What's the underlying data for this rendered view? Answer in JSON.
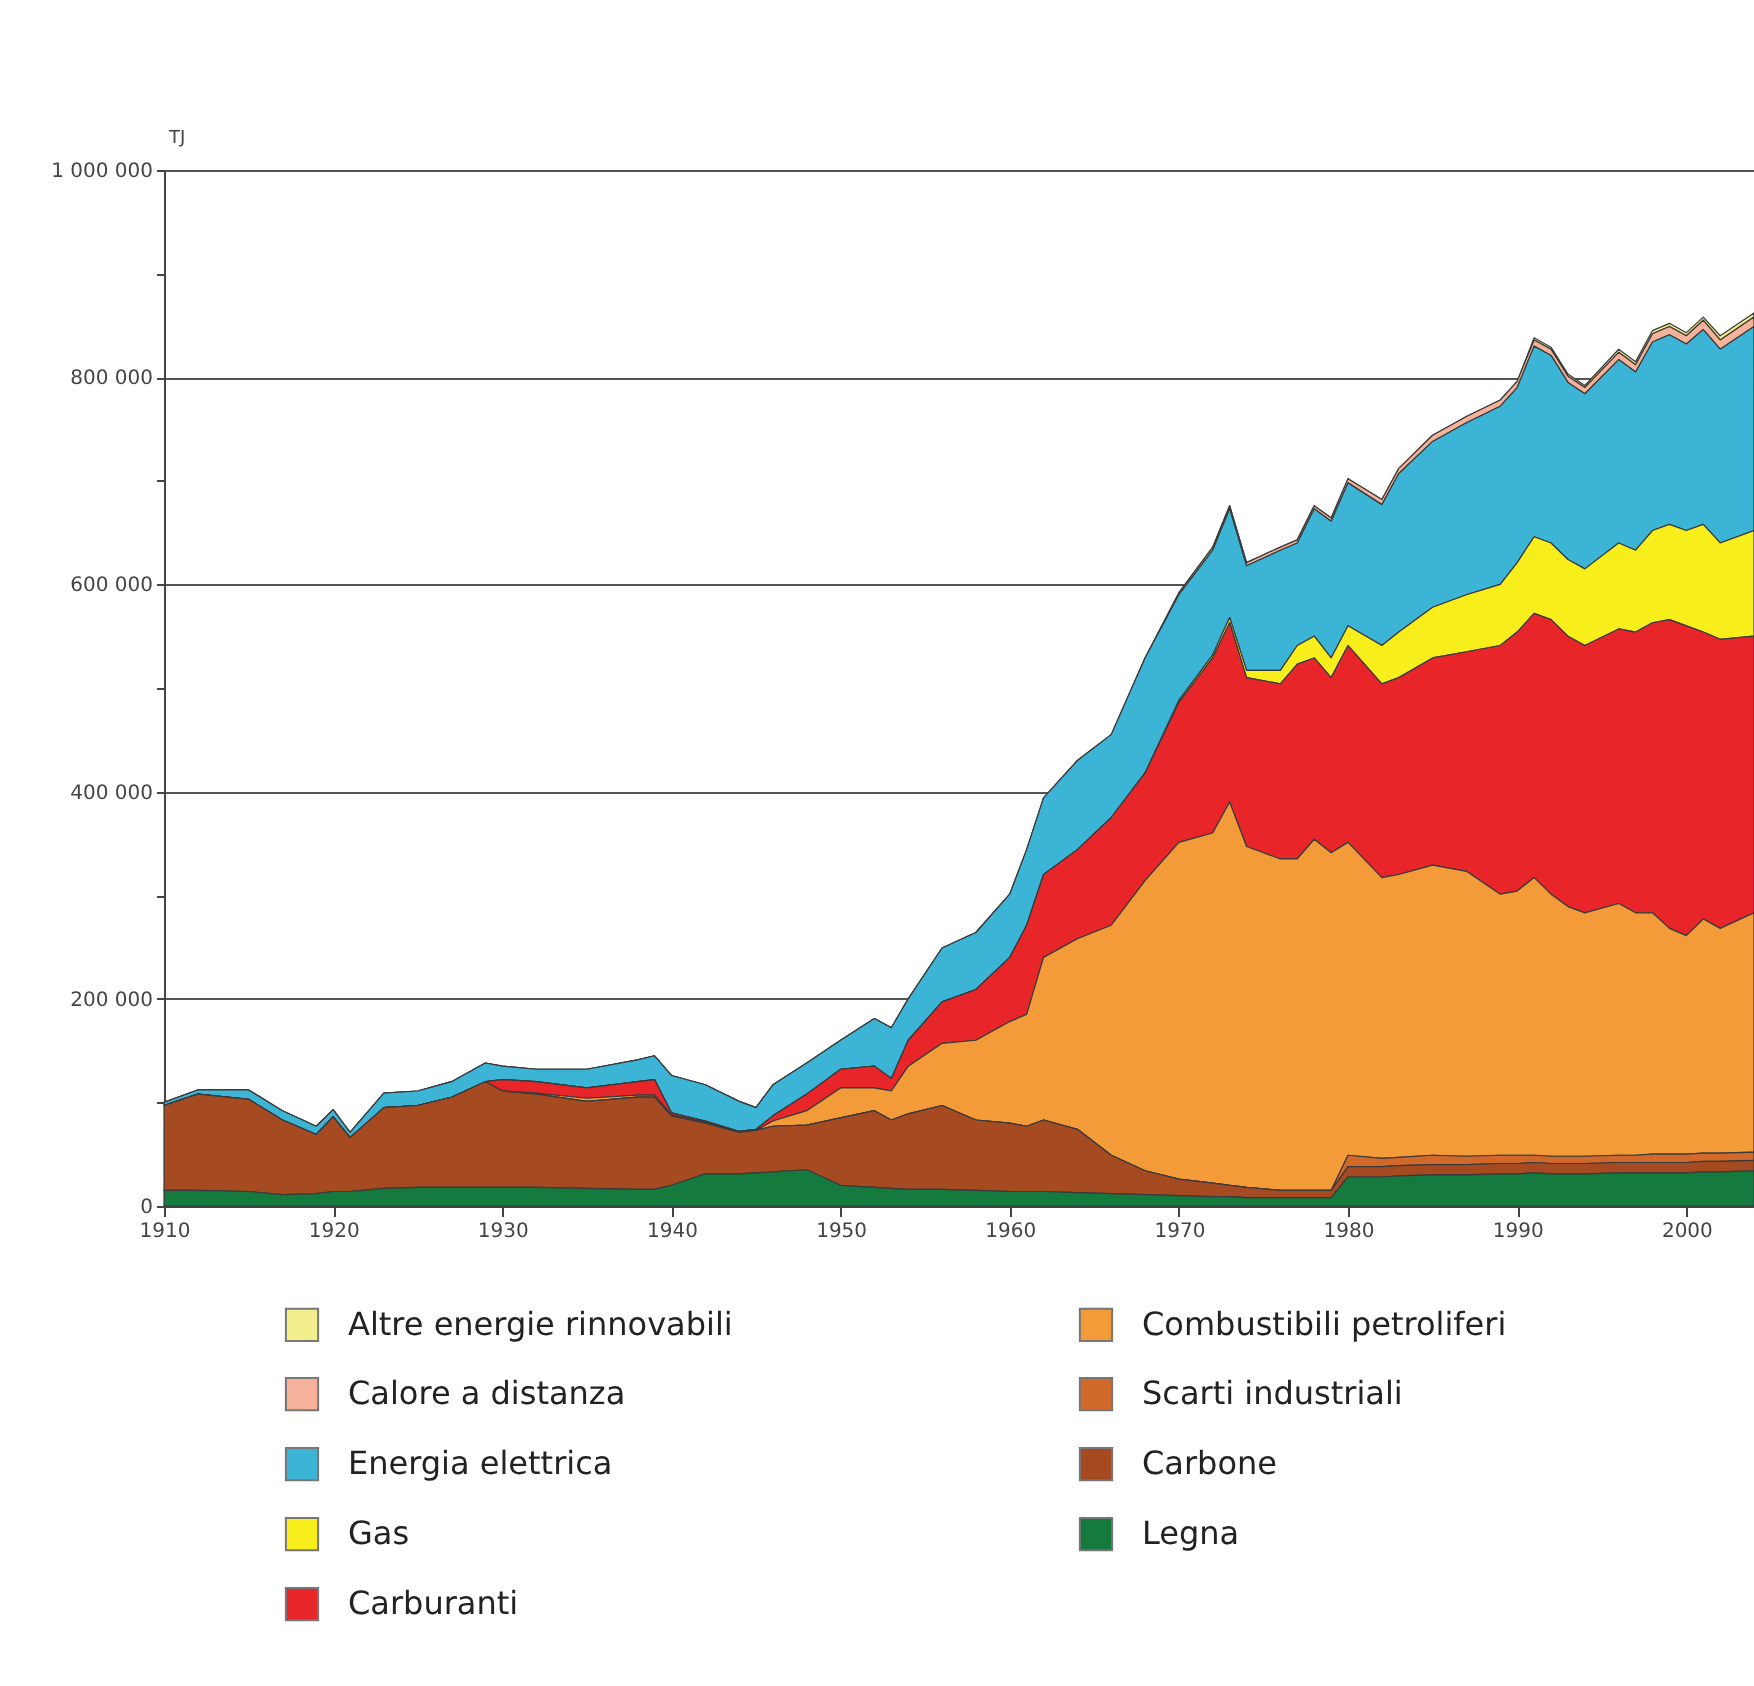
{
  "chart_data": {
    "type": "area",
    "stacked": true,
    "ylabel": "TJ",
    "legend": "bottom",
    "grid": "y",
    "x": [
      1910,
      1912,
      1915,
      1917,
      1919,
      1920,
      1921,
      1923,
      1925,
      1927,
      1929,
      1930,
      1932,
      1935,
      1938,
      1939,
      1940,
      1942,
      1944,
      1945,
      1946,
      1948,
      1950,
      1952,
      1953,
      1954,
      1956,
      1958,
      1960,
      1961,
      1962,
      1964,
      1966,
      1968,
      1970,
      1972,
      1973,
      1974,
      1976,
      1977,
      1978,
      1979,
      1980,
      1982,
      1983,
      1985,
      1987,
      1989,
      1990,
      1991,
      1992,
      1993,
      1994,
      1996,
      1997,
      1998,
      1999,
      2000,
      2001,
      2002,
      2004
    ],
    "xlim": [
      1910,
      2004
    ],
    "xticks": [
      1910,
      1920,
      1930,
      1940,
      1950,
      1960,
      1970,
      1980,
      1990,
      2000
    ],
    "ylim": [
      0,
      1000000
    ],
    "yticks": [
      0,
      {
        "value": 100000,
        "label": null
      },
      {
        "value": 200000,
        "label": "200 000"
      },
      {
        "value": 300000,
        "label": null
      },
      {
        "value": 400000,
        "label": "400 000"
      },
      {
        "value": 500000,
        "label": null
      },
      {
        "value": 600000,
        "label": "600 000"
      },
      {
        "value": 700000,
        "label": null
      },
      {
        "value": 800000,
        "label": "800 000"
      },
      {
        "value": 900000,
        "label": null
      },
      {
        "value": 1000000,
        "label": "1 000 000"
      }
    ],
    "series": [
      {
        "name": "Altre energie rinnovabili",
        "color": "#f3ee8c",
        "values": [
          0,
          0,
          0,
          0,
          0,
          0,
          0,
          0,
          0,
          0,
          0,
          0,
          0,
          0,
          0,
          0,
          0,
          0,
          0,
          0,
          0,
          0,
          0,
          0,
          0,
          0,
          0,
          0,
          0,
          0,
          0,
          0,
          0,
          0,
          0,
          0,
          0,
          0,
          0,
          0,
          0,
          0,
          0,
          0,
          0,
          0,
          0,
          0,
          0,
          2000,
          2000,
          2000,
          2000,
          3000,
          3000,
          3000,
          3000,
          3000,
          3000,
          4000,
          4000
        ]
      },
      {
        "name": "Calore a distanza",
        "color": "#f5b19a",
        "values": [
          0,
          0,
          0,
          0,
          0,
          0,
          0,
          0,
          0,
          0,
          0,
          0,
          0,
          0,
          0,
          0,
          0,
          0,
          0,
          0,
          0,
          0,
          0,
          0,
          0,
          0,
          0,
          0,
          0,
          0,
          0,
          0,
          0,
          0,
          2000,
          3000,
          3000,
          3000,
          3000,
          3000,
          3000,
          3000,
          4000,
          5000,
          5000,
          6000,
          6000,
          6000,
          6000,
          6000,
          6000,
          6000,
          6000,
          7000,
          7000,
          8000,
          8000,
          8000,
          9000,
          9000,
          9000
        ]
      },
      {
        "name": "Energia elettrica",
        "color": "#3cb4d6",
        "values": [
          3000,
          4000,
          9000,
          9000,
          8000,
          7000,
          5000,
          14000,
          14000,
          15000,
          18000,
          13000,
          12000,
          18000,
          21000,
          23000,
          36000,
          35000,
          29000,
          21000,
          30000,
          30000,
          28000,
          46000,
          49000,
          40000,
          52000,
          55000,
          61000,
          73000,
          74000,
          86000,
          80000,
          111000,
          102000,
          101000,
          105000,
          101000,
          116000,
          99000,
          123000,
          132000,
          138000,
          136000,
          153000,
          160000,
          166000,
          172000,
          169000,
          184000,
          181000,
          171000,
          169000,
          177000,
          172000,
          182000,
          183000,
          180000,
          188000,
          187000,
          197000
        ]
      },
      {
        "name": "Gas",
        "color": "#f7ee1b",
        "values": [
          0,
          0,
          0,
          0,
          0,
          0,
          0,
          0,
          0,
          0,
          0,
          0,
          0,
          0,
          0,
          0,
          0,
          0,
          0,
          0,
          0,
          0,
          0,
          0,
          0,
          0,
          0,
          0,
          0,
          0,
          0,
          0,
          0,
          0,
          2000,
          3000,
          5000,
          7000,
          13000,
          18000,
          21000,
          19000,
          19000,
          37000,
          44000,
          49000,
          55000,
          59000,
          67000,
          74000,
          74000,
          74000,
          74000,
          83000,
          79000,
          89000,
          92000,
          92000,
          104000,
          93000,
          102000
        ]
      },
      {
        "name": "Carburanti",
        "color": "#e8262a",
        "values": [
          0,
          0,
          0,
          0,
          0,
          0,
          0,
          0,
          0,
          0,
          0,
          11000,
          11000,
          10000,
          13000,
          15000,
          2000,
          1000,
          1000,
          1000,
          5000,
          16000,
          18000,
          21000,
          12000,
          25000,
          40000,
          49000,
          62000,
          86000,
          80000,
          86000,
          104000,
          104000,
          135000,
          169000,
          173000,
          163000,
          169000,
          188000,
          175000,
          169000,
          190000,
          187000,
          190000,
          200000,
          212000,
          240000,
          250000,
          255000,
          265000,
          261000,
          258000,
          265000,
          271000,
          280000,
          298000,
          299000,
          277000,
          279000,
          267000
        ]
      },
      {
        "name": "Combustibili petroliferi",
        "color": "#f29b38",
        "values": [
          0,
          0,
          0,
          0,
          0,
          0,
          0,
          0,
          0,
          0,
          0,
          0,
          1000,
          3000,
          2000,
          2000,
          1000,
          1000,
          0,
          0,
          5000,
          14000,
          29000,
          22000,
          28000,
          46000,
          60000,
          77000,
          98000,
          108000,
          157000,
          184000,
          222000,
          280000,
          325000,
          338000,
          370000,
          329000,
          320000,
          320000,
          339000,
          326000,
          302000,
          271000,
          273000,
          280000,
          275000,
          252000,
          255000,
          268000,
          253000,
          241000,
          235000,
          243000,
          234000,
          233000,
          218000,
          211000,
          226000,
          217000,
          231000
        ]
      },
      {
        "name": "Scarti industriali",
        "color": "#d0692a",
        "values": [
          0,
          0,
          0,
          0,
          0,
          0,
          0,
          0,
          0,
          0,
          0,
          0,
          0,
          0,
          0,
          0,
          0,
          0,
          0,
          0,
          0,
          0,
          0,
          0,
          0,
          0,
          0,
          0,
          0,
          0,
          0,
          0,
          0,
          0,
          0,
          0,
          0,
          0,
          0,
          0,
          0,
          0,
          11000,
          8000,
          8000,
          9000,
          8000,
          8000,
          8000,
          7000,
          7000,
          7000,
          7000,
          7000,
          7000,
          8000,
          8000,
          8000,
          8000,
          8000,
          8000
        ]
      },
      {
        "name": "Carbone",
        "color": "#a64a22",
        "values": [
          82000,
          93000,
          89000,
          72000,
          57000,
          72000,
          52000,
          78000,
          79000,
          87000,
          102000,
          93000,
          90000,
          84000,
          89000,
          89000,
          67000,
          49000,
          40000,
          41000,
          44000,
          43000,
          65000,
          74000,
          66000,
          73000,
          81000,
          68000,
          66000,
          63000,
          69000,
          61000,
          37000,
          23000,
          16000,
          13000,
          11000,
          10000,
          7000,
          7000,
          7000,
          7000,
          10000,
          10000,
          10000,
          10000,
          10000,
          10000,
          10000,
          10000,
          10000,
          10000,
          10000,
          10000,
          10000,
          10000,
          10000,
          10000,
          10000,
          10000,
          10000
        ]
      },
      {
        "name": "Legna",
        "color": "#157a3d",
        "values": [
          15000,
          15000,
          14000,
          11000,
          12000,
          14000,
          14000,
          17000,
          18000,
          18000,
          18000,
          18000,
          18000,
          17000,
          16000,
          16000,
          20000,
          31000,
          31000,
          32000,
          33000,
          35000,
          20000,
          18000,
          17000,
          16000,
          16000,
          15000,
          14000,
          14000,
          14000,
          13000,
          12000,
          11000,
          10000,
          9000,
          9000,
          8000,
          8000,
          8000,
          8000,
          8000,
          28000,
          28000,
          29000,
          30000,
          30000,
          31000,
          31000,
          32000,
          31000,
          31000,
          31000,
          32000,
          32000,
          32000,
          32000,
          32000,
          33000,
          33000,
          34000
        ]
      }
    ]
  }
}
